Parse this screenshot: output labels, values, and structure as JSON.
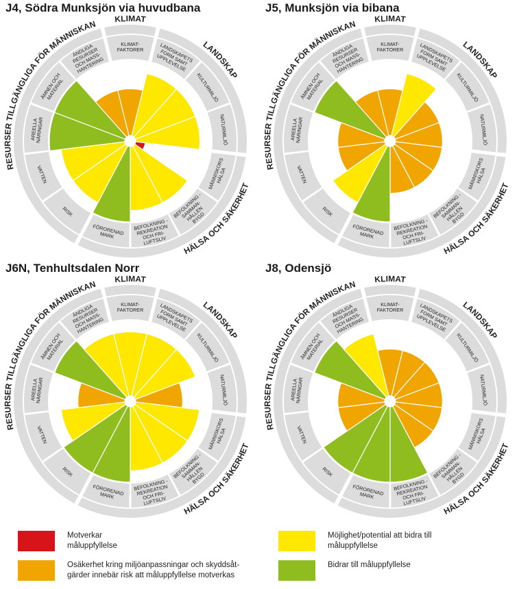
{
  "colors": {
    "red": "#d7141a",
    "orange": "#f0a500",
    "yellow": "#ffe800",
    "green": "#8fbc1e",
    "ring": "#dcdcdc"
  },
  "ring_labels": {
    "outer": {
      "klimat": "KLIMAT",
      "landskap": "LANDSKAP",
      "halsa": "HÄLSA OCH SÄKERHET",
      "resurser": "RESURSER TILLGÄNGLIGA FÖR MÄNNISKAN"
    },
    "inner": {
      "klimatfaktorer": "KLIMAT-\nFAKTORER",
      "landskapets_form": "LANDSKAPETS\nFORM SAMT\nUPPLEVELSE",
      "kulturmiljo": "KULTURMILJÖ",
      "naturmiljo": "NATURMILJÖ",
      "manniskors_halsa": "MÄNNISKORS\nHÄLSA",
      "befolkning": "BEFOLKNING -\nSAMMAN-\nHÅLLEN\nBYGD",
      "rekreation": "BEFOLKNING -\nREKREATION\nOCH FRI-\nLUFTSLIV",
      "fororenad_mark": "FÖRORENAD\nMARK",
      "risk": "RISK",
      "vatten": "VATTEN",
      "areella": "AREELLA\nNÄRINGAR",
      "amnen": "ÄMNEN OCH\nMATERIAL",
      "andliga": "ÄNDLIGA\nRESURSER\nOCH MASS-\nHANTERING"
    }
  },
  "panels": [
    {
      "title": "J4, Södra Munksjön via huvudbana",
      "sectors": [
        {
          "aspect": "landskapets_form",
          "rating": "yellow",
          "level": 1.0
        },
        {
          "aspect": "kulturmiljo",
          "rating": "yellow",
          "level": 1.0
        },
        {
          "aspect": "naturmiljo",
          "rating": "yellow",
          "level": 1.0
        },
        {
          "aspect": "manniskors_halsa",
          "rating": "red",
          "level": 0.3
        },
        {
          "aspect": "befolkning",
          "rating": "yellow",
          "level": 1.0
        },
        {
          "aspect": "rekreation",
          "rating": "yellow",
          "level": 1.0
        },
        {
          "aspect": "fororenad_mark",
          "rating": "green",
          "level": 1.0
        },
        {
          "aspect": "risk",
          "rating": "yellow",
          "level": 1.0
        },
        {
          "aspect": "vatten",
          "rating": "yellow",
          "level": 1.0
        },
        {
          "aspect": "areella",
          "rating": "green",
          "level": 1.0
        },
        {
          "aspect": "amnen",
          "rating": "green",
          "level": 1.0
        },
        {
          "aspect": "andliga",
          "rating": "orange",
          "level": 0.65
        },
        {
          "aspect": "klimatfaktorer",
          "rating": "orange",
          "level": 0.65
        }
      ]
    },
    {
      "title": "J5, Munksjön via bibana",
      "sectors": [
        {
          "aspect": "landskapets_form",
          "rating": "yellow",
          "level": 1.0
        },
        {
          "aspect": "kulturmiljo",
          "rating": "orange",
          "level": 0.65
        },
        {
          "aspect": "naturmiljo",
          "rating": "orange",
          "level": 0.65
        },
        {
          "aspect": "manniskors_halsa",
          "rating": "orange",
          "level": 0.65
        },
        {
          "aspect": "befolkning",
          "rating": "orange",
          "level": 0.65
        },
        {
          "aspect": "rekreation",
          "rating": "orange",
          "level": 0.65
        },
        {
          "aspect": "fororenad_mark",
          "rating": "green",
          "level": 1.0
        },
        {
          "aspect": "risk",
          "rating": "yellow",
          "level": 1.0
        },
        {
          "aspect": "vatten",
          "rating": "orange",
          "level": 0.65
        },
        {
          "aspect": "areella",
          "rating": "orange",
          "level": 0.65
        },
        {
          "aspect": "amnen",
          "rating": "green",
          "level": 1.0
        },
        {
          "aspect": "andliga",
          "rating": "orange",
          "level": 0.65
        },
        {
          "aspect": "klimatfaktorer",
          "rating": "orange",
          "level": 0.65
        }
      ]
    },
    {
      "title": "J6N, Tenhultsdalen Norr",
      "sectors": [
        {
          "aspect": "landskapets_form",
          "rating": "yellow",
          "level": 1.0
        },
        {
          "aspect": "kulturmiljo",
          "rating": "yellow",
          "level": 1.0
        },
        {
          "aspect": "naturmiljo",
          "rating": "orange",
          "level": 0.65
        },
        {
          "aspect": "manniskors_halsa",
          "rating": "yellow",
          "level": 1.0
        },
        {
          "aspect": "befolkning",
          "rating": "yellow",
          "level": 1.0
        },
        {
          "aspect": "rekreation",
          "rating": "yellow",
          "level": 1.0
        },
        {
          "aspect": "fororenad_mark",
          "rating": "green",
          "level": 1.0
        },
        {
          "aspect": "risk",
          "rating": "green",
          "level": 1.0
        },
        {
          "aspect": "vatten",
          "rating": "yellow",
          "level": 1.0
        },
        {
          "aspect": "areella",
          "rating": "orange",
          "level": 0.65
        },
        {
          "aspect": "amnen",
          "rating": "green",
          "level": 1.0
        },
        {
          "aspect": "andliga",
          "rating": "yellow",
          "level": 1.0
        },
        {
          "aspect": "klimatfaktorer",
          "rating": "yellow",
          "level": 1.0
        }
      ]
    },
    {
      "title": "J8, Odensjö",
      "sectors": [
        {
          "aspect": "landskapets_form",
          "rating": "orange",
          "level": 0.65
        },
        {
          "aspect": "kulturmiljo",
          "rating": "orange",
          "level": 0.65
        },
        {
          "aspect": "naturmiljo",
          "rating": "orange",
          "level": 0.65
        },
        {
          "aspect": "manniskors_halsa",
          "rating": "orange",
          "level": 0.65
        },
        {
          "aspect": "befolkning",
          "rating": "orange",
          "level": 0.65
        },
        {
          "aspect": "rekreation",
          "rating": "green",
          "level": 1.0
        },
        {
          "aspect": "fororenad_mark",
          "rating": "green",
          "level": 1.0
        },
        {
          "aspect": "risk",
          "rating": "green",
          "level": 1.0
        },
        {
          "aspect": "vatten",
          "rating": "orange",
          "level": 0.65
        },
        {
          "aspect": "areella",
          "rating": "orange",
          "level": 0.65
        },
        {
          "aspect": "amnen",
          "rating": "green",
          "level": 1.0
        },
        {
          "aspect": "andliga",
          "rating": "yellow",
          "level": 1.0
        },
        {
          "aspect": "klimatfaktorer",
          "rating": "orange",
          "level": 0.65
        }
      ]
    }
  ],
  "legend": [
    {
      "key": "red",
      "text": "Motverkar\nmåluppfyllelse"
    },
    {
      "key": "yellow",
      "text": "Möjlighet/potential att bidra till\nmåluppfyllelse"
    },
    {
      "key": "orange",
      "text": "Osäkerhet kring miljöanpassningar och skyddsåt-\ngärder innebär risk att måluppfyllelse motverkas"
    },
    {
      "key": "green",
      "text": "Bidrar till måluppfyllelse"
    }
  ]
}
